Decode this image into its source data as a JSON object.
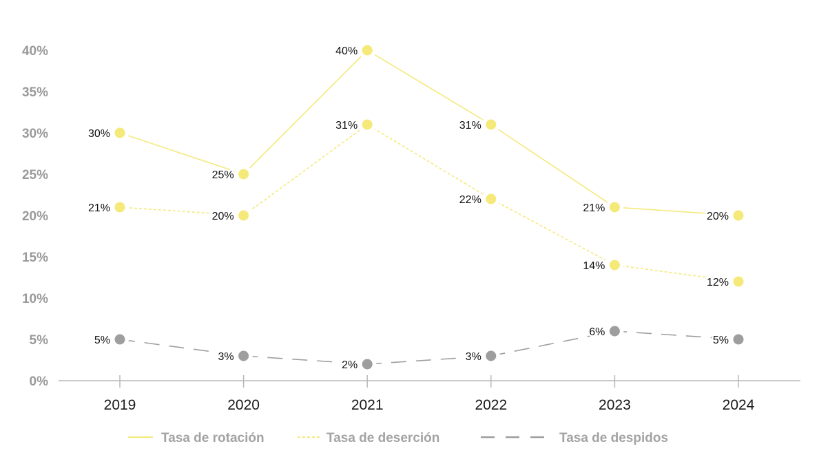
{
  "chart_data": {
    "type": "line",
    "title": "",
    "xlabel": "",
    "ylabel": "",
    "categories": [
      "2019",
      "2020",
      "2021",
      "2022",
      "2023",
      "2024"
    ],
    "ylim": [
      0,
      40
    ],
    "yticks": [
      0,
      5,
      10,
      15,
      20,
      25,
      30,
      35,
      40
    ],
    "ytick_labels": [
      "0%",
      "5%",
      "10%",
      "15%",
      "20%",
      "25%",
      "30%",
      "35%",
      "40%"
    ],
    "grid": false,
    "legend_position": "bottom",
    "series": [
      {
        "name": "Tasa de rotación",
        "values": [
          30,
          25,
          40,
          31,
          21,
          20
        ],
        "labels": [
          "30%",
          "25%",
          "40%",
          "31%",
          "21%",
          "20%"
        ],
        "color": "#f5e97a",
        "style": "solid"
      },
      {
        "name": "Tasa de deserción",
        "values": [
          21,
          20,
          31,
          22,
          14,
          12
        ],
        "labels": [
          "21%",
          "20%",
          "31%",
          "22%",
          "14%",
          "12%"
        ],
        "color": "#f5e97a",
        "style": "dotted"
      },
      {
        "name": "Tasa de despidos",
        "values": [
          5,
          3,
          2,
          3,
          6,
          5
        ],
        "labels": [
          "5%",
          "3%",
          "2%",
          "3%",
          "6%",
          "5%"
        ],
        "color": "#9e9e9e",
        "style": "dashed"
      }
    ]
  }
}
